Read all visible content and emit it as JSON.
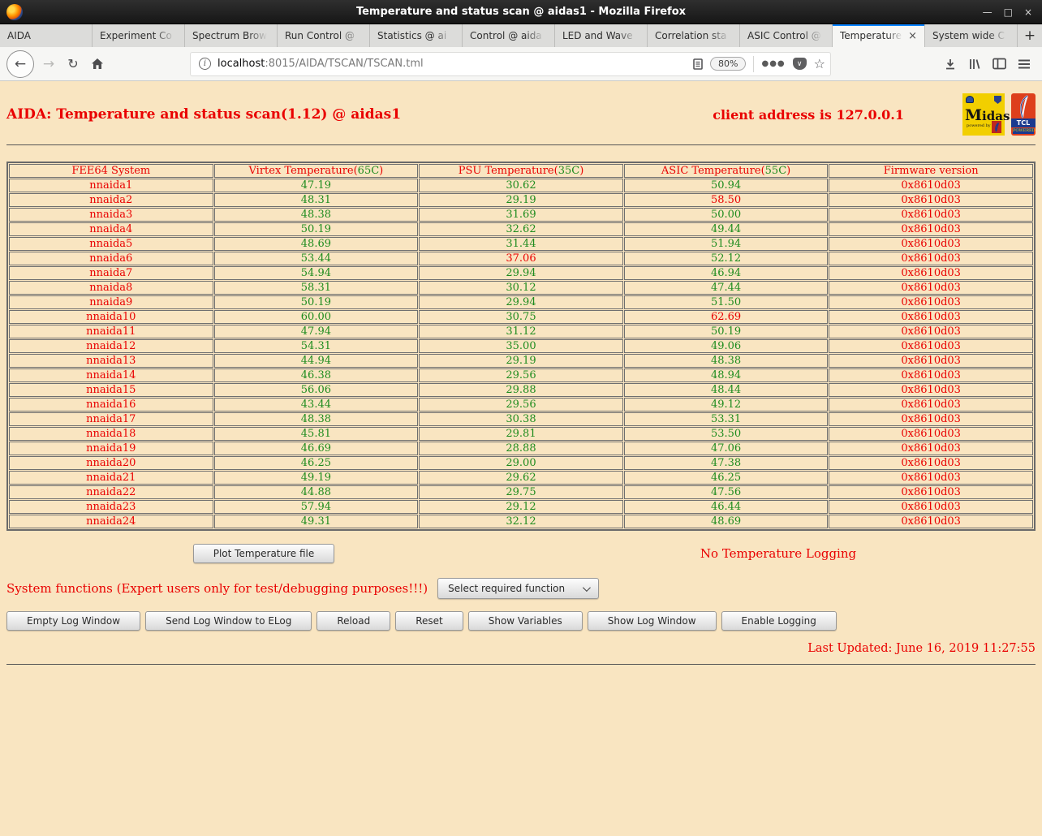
{
  "window": {
    "title": "Temperature and status scan @ aidas1 - Mozilla Firefox"
  },
  "browser": {
    "tabs": [
      {
        "label": "AIDA",
        "active": false
      },
      {
        "label": "Experiment Co",
        "active": false
      },
      {
        "label": "Spectrum Brow",
        "active": false
      },
      {
        "label": "Run Control @",
        "active": false
      },
      {
        "label": "Statistics @ ai",
        "active": false
      },
      {
        "label": "Control @ aida",
        "active": false
      },
      {
        "label": "LED and Wave",
        "active": false
      },
      {
        "label": "Correlation sta",
        "active": false
      },
      {
        "label": "ASIC Control @",
        "active": false
      },
      {
        "label": "Temperature",
        "active": true
      },
      {
        "label": "System wide C",
        "active": false
      }
    ],
    "new_tab_label": "+",
    "url": {
      "host": "localhost",
      "path": ":8015/AIDA/TSCAN/TSCAN.tml"
    },
    "zoom_badge": "80%"
  },
  "colors": {
    "page_background": "#f9e5c1",
    "alert_red": "#e90000",
    "ok_green": "#1e8c1e",
    "active_tab_accent": "#0a84ff"
  },
  "page": {
    "title": "AIDA: Temperature and status scan(1.12) @ aidas1",
    "client_address": "client address is 127.0.0.1",
    "table": {
      "headers": [
        {
          "label": "FEE64 System",
          "limit": null
        },
        {
          "label": "Virtex Temperature",
          "limit": "65C"
        },
        {
          "label": "PSU Temperature",
          "limit": "35C"
        },
        {
          "label": "ASIC Temperature",
          "limit": "55C"
        },
        {
          "label": "Firmware version",
          "limit": null
        }
      ],
      "rows": [
        {
          "system": "nnaida1",
          "virtex": "47.19",
          "psu": "30.62",
          "asic": "50.94",
          "firmware": "0x8610d03"
        },
        {
          "system": "nnaida2",
          "virtex": "48.31",
          "psu": "29.19",
          "asic": "58.50",
          "firmware": "0x8610d03"
        },
        {
          "system": "nnaida3",
          "virtex": "48.38",
          "psu": "31.69",
          "asic": "50.00",
          "firmware": "0x8610d03"
        },
        {
          "system": "nnaida4",
          "virtex": "50.19",
          "psu": "32.62",
          "asic": "49.44",
          "firmware": "0x8610d03"
        },
        {
          "system": "nnaida5",
          "virtex": "48.69",
          "psu": "31.44",
          "asic": "51.94",
          "firmware": "0x8610d03"
        },
        {
          "system": "nnaida6",
          "virtex": "53.44",
          "psu": "37.06",
          "asic": "52.12",
          "firmware": "0x8610d03"
        },
        {
          "system": "nnaida7",
          "virtex": "54.94",
          "psu": "29.94",
          "asic": "46.94",
          "firmware": "0x8610d03"
        },
        {
          "system": "nnaida8",
          "virtex": "58.31",
          "psu": "30.12",
          "asic": "47.44",
          "firmware": "0x8610d03"
        },
        {
          "system": "nnaida9",
          "virtex": "50.19",
          "psu": "29.94",
          "asic": "51.50",
          "firmware": "0x8610d03"
        },
        {
          "system": "nnaida10",
          "virtex": "60.00",
          "psu": "30.75",
          "asic": "62.69",
          "firmware": "0x8610d03"
        },
        {
          "system": "nnaida11",
          "virtex": "47.94",
          "psu": "31.12",
          "asic": "50.19",
          "firmware": "0x8610d03"
        },
        {
          "system": "nnaida12",
          "virtex": "54.31",
          "psu": "35.00",
          "asic": "49.06",
          "firmware": "0x8610d03"
        },
        {
          "system": "nnaida13",
          "virtex": "44.94",
          "psu": "29.19",
          "asic": "48.38",
          "firmware": "0x8610d03"
        },
        {
          "system": "nnaida14",
          "virtex": "46.38",
          "psu": "29.56",
          "asic": "48.94",
          "firmware": "0x8610d03"
        },
        {
          "system": "nnaida15",
          "virtex": "56.06",
          "psu": "29.88",
          "asic": "48.44",
          "firmware": "0x8610d03"
        },
        {
          "system": "nnaida16",
          "virtex": "43.44",
          "psu": "29.56",
          "asic": "49.12",
          "firmware": "0x8610d03"
        },
        {
          "system": "nnaida17",
          "virtex": "48.38",
          "psu": "30.38",
          "asic": "53.31",
          "firmware": "0x8610d03"
        },
        {
          "system": "nnaida18",
          "virtex": "45.81",
          "psu": "29.81",
          "asic": "53.50",
          "firmware": "0x8610d03"
        },
        {
          "system": "nnaida19",
          "virtex": "46.69",
          "psu": "28.88",
          "asic": "47.06",
          "firmware": "0x8610d03"
        },
        {
          "system": "nnaida20",
          "virtex": "46.25",
          "psu": "29.00",
          "asic": "47.38",
          "firmware": "0x8610d03"
        },
        {
          "system": "nnaida21",
          "virtex": "49.19",
          "psu": "29.62",
          "asic": "46.25",
          "firmware": "0x8610d03"
        },
        {
          "system": "nnaida22",
          "virtex": "44.88",
          "psu": "29.75",
          "asic": "47.56",
          "firmware": "0x8610d03"
        },
        {
          "system": "nnaida23",
          "virtex": "57.94",
          "psu": "29.12",
          "asic": "46.44",
          "firmware": "0x8610d03"
        },
        {
          "system": "nnaida24",
          "virtex": "49.31",
          "psu": "32.12",
          "asic": "48.69",
          "firmware": "0x8610d03"
        }
      ]
    },
    "plot_button_label": "Plot Temperature file",
    "logging_status": "No Temperature Logging",
    "system_functions_label": "System functions (Expert users only for test/debugging purposes!!!)",
    "function_select_label": "Select required function",
    "function_buttons": [
      "Empty Log Window",
      "Send Log Window to ELog",
      "Reload",
      "Reset",
      "Show Variables",
      "Show Log Window",
      "Enable Logging"
    ],
    "last_updated": "Last Updated: June 16, 2019 11:27:55",
    "logos": {
      "midas": "idas",
      "midas_big_m": "M",
      "midas_sub": "powered by",
      "tcl": "TCL",
      "tcl_sub": "POWERED"
    }
  }
}
